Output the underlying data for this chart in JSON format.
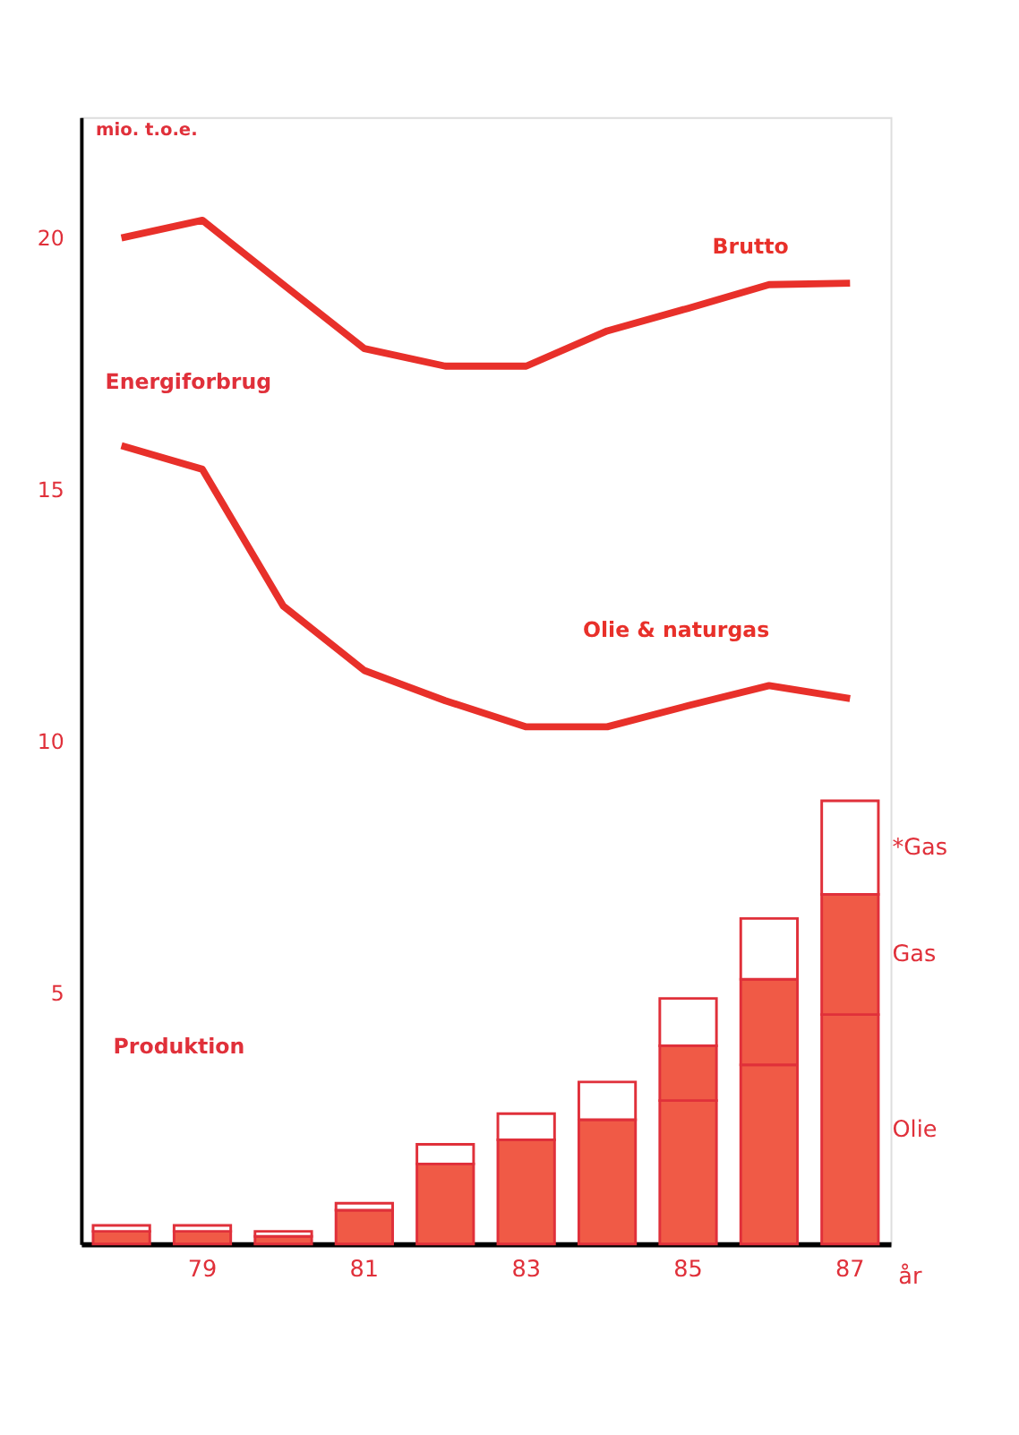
{
  "chart_data": {
    "type": "bar",
    "stacked": true,
    "categories": [
      null,
      "79",
      null,
      "81",
      null,
      "83",
      null,
      "85",
      null,
      "87"
    ],
    "xlabel": "år",
    "ylabel": "mio. t.o.e.",
    "ylim": [
      0,
      22.4
    ],
    "yticks": [
      5,
      10,
      15,
      20
    ],
    "grid": false,
    "legend": false,
    "annotations": [
      "Energiforbrug",
      "Produktion"
    ],
    "series": [
      {
        "name": "Olie",
        "color": "#f05a46",
        "values": [
          0.25,
          0.25,
          0.15,
          0.67,
          1.59,
          2.07,
          2.47,
          2.85,
          3.56,
          4.56
        ]
      },
      {
        "name": "Gas",
        "color": "#f05a46",
        "values": [
          0,
          0,
          0,
          0,
          0,
          0,
          0,
          1.09,
          1.7,
          2.39
        ]
      },
      {
        "name": "*Gas",
        "color": "#ffffff",
        "values": [
          0.12,
          0.12,
          0.1,
          0.14,
          0.39,
          0.52,
          0.75,
          0.94,
          1.21,
          1.86
        ]
      },
      {
        "name": "Brutto",
        "type": "line",
        "color": "#e8302a",
        "values": [
          20.0,
          20.35,
          19.07,
          17.8,
          17.45,
          17.45,
          18.15,
          18.6,
          19.07,
          19.1
        ]
      },
      {
        "name": "Olie & naturgas",
        "type": "line",
        "color": "#e8302a",
        "values": [
          15.87,
          15.4,
          12.68,
          11.4,
          10.8,
          10.28,
          10.28,
          10.7,
          11.1,
          10.84
        ]
      }
    ]
  }
}
